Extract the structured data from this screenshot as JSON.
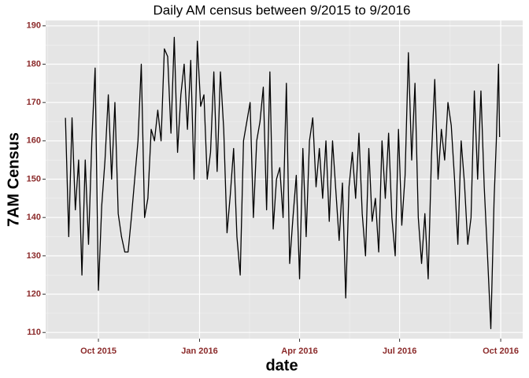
{
  "chart_data": {
    "type": "line",
    "title": "Daily AM census between 9/2015 to 9/2016",
    "x_label": "date",
    "y_label": "7AM Census",
    "color": "#000000",
    "grid": true,
    "x": [
      "2015-09-01",
      "2015-09-04",
      "2015-09-07",
      "2015-09-10",
      "2015-09-13",
      "2015-09-16",
      "2015-09-19",
      "2015-09-22",
      "2015-09-25",
      "2015-09-28",
      "2015-10-01",
      "2015-10-04",
      "2015-10-07",
      "2015-10-10",
      "2015-10-13",
      "2015-10-16",
      "2015-10-19",
      "2015-10-22",
      "2015-10-25",
      "2015-10-28",
      "2015-10-31",
      "2015-11-03",
      "2015-11-06",
      "2015-11-09",
      "2015-11-12",
      "2015-11-15",
      "2015-11-18",
      "2015-11-21",
      "2015-11-24",
      "2015-11-27",
      "2015-11-30",
      "2015-12-03",
      "2015-12-06",
      "2015-12-09",
      "2015-12-12",
      "2015-12-15",
      "2015-12-18",
      "2015-12-21",
      "2015-12-24",
      "2015-12-27",
      "2015-12-30",
      "2016-01-02",
      "2016-01-05",
      "2016-01-08",
      "2016-01-11",
      "2016-01-14",
      "2016-01-17",
      "2016-01-20",
      "2016-01-23",
      "2016-01-26",
      "2016-01-29",
      "2016-02-01",
      "2016-02-04",
      "2016-02-07",
      "2016-02-10",
      "2016-02-13",
      "2016-02-16",
      "2016-02-19",
      "2016-02-22",
      "2016-02-25",
      "2016-02-28",
      "2016-03-02",
      "2016-03-05",
      "2016-03-08",
      "2016-03-11",
      "2016-03-14",
      "2016-03-17",
      "2016-03-20",
      "2016-03-23",
      "2016-03-26",
      "2016-03-29",
      "2016-04-01",
      "2016-04-04",
      "2016-04-07",
      "2016-04-10",
      "2016-04-13",
      "2016-04-16",
      "2016-04-19",
      "2016-04-22",
      "2016-04-25",
      "2016-04-28",
      "2016-05-01",
      "2016-05-04",
      "2016-05-07",
      "2016-05-10",
      "2016-05-13",
      "2016-05-16",
      "2016-05-19",
      "2016-05-22",
      "2016-05-25",
      "2016-05-28",
      "2016-05-31",
      "2016-06-03",
      "2016-06-06",
      "2016-06-09",
      "2016-06-12",
      "2016-06-15",
      "2016-06-18",
      "2016-06-21",
      "2016-06-24",
      "2016-06-27",
      "2016-06-30",
      "2016-07-03",
      "2016-07-06",
      "2016-07-09",
      "2016-07-12",
      "2016-07-15",
      "2016-07-18",
      "2016-07-21",
      "2016-07-24",
      "2016-07-27",
      "2016-07-30",
      "2016-08-02",
      "2016-08-05",
      "2016-08-08",
      "2016-08-11",
      "2016-08-14",
      "2016-08-17",
      "2016-08-20",
      "2016-08-23",
      "2016-08-26",
      "2016-08-29",
      "2016-09-01",
      "2016-09-04",
      "2016-09-07",
      "2016-09-10",
      "2016-09-13",
      "2016-09-16",
      "2016-09-19",
      "2016-09-22",
      "2016-09-25",
      "2016-09-27",
      "2016-09-29",
      "2016-09-30"
    ],
    "values": [
      166,
      135,
      166,
      142,
      155,
      125,
      155,
      133,
      160,
      179,
      121,
      143,
      155,
      172,
      150,
      170,
      141,
      135,
      131,
      131,
      140,
      150,
      160,
      180,
      140,
      145,
      163,
      160,
      168,
      160,
      184,
      182,
      162,
      187,
      157,
      172,
      180,
      163,
      181,
      150,
      186,
      169,
      172,
      150,
      157,
      178,
      152,
      178,
      163,
      136,
      146,
      158,
      135,
      125,
      160,
      165,
      170,
      140,
      160,
      165,
      174,
      142,
      178,
      137,
      150,
      153,
      140,
      175,
      128,
      140,
      151,
      124,
      158,
      135,
      160,
      166,
      148,
      158,
      145,
      160,
      139,
      160,
      147,
      134,
      149,
      119,
      148,
      157,
      145,
      162,
      141,
      130,
      158,
      139,
      145,
      131,
      160,
      145,
      162,
      140,
      130,
      163,
      138,
      151,
      183,
      155,
      175,
      140,
      128,
      141,
      124,
      156,
      176,
      150,
      163,
      155,
      170,
      164,
      150,
      133,
      160,
      149,
      133,
      140,
      173,
      150,
      173,
      148,
      130,
      111,
      145,
      160,
      180,
      161
    ],
    "xlim": [
      "2015-08-14",
      "2016-10-21"
    ],
    "xticks": [
      {
        "value": "2015-10-01",
        "label": "Oct 2015"
      },
      {
        "value": "2016-01-01",
        "label": "Jan 2016"
      },
      {
        "value": "2016-04-01",
        "label": "Apr 2016"
      },
      {
        "value": "2016-07-01",
        "label": "Jul 2016"
      },
      {
        "value": "2016-10-01",
        "label": "Oct 2016"
      }
    ],
    "ylim": [
      108.4,
      191.4
    ],
    "yticks": [
      110,
      120,
      130,
      140,
      150,
      160,
      170,
      180,
      190
    ]
  }
}
